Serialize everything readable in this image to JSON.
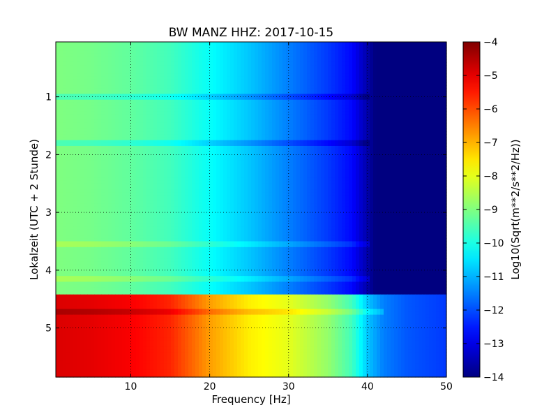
{
  "chart_data": {
    "type": "heatmap",
    "title": "BW MANZ HHZ: 2017-10-15",
    "xlabel": "Frequency [Hz]",
    "ylabel": "Lokalzeit (UTC + 2 Stunde)",
    "colorbar_label": "Log10(Sqrt(m**2/s**2/Hz))",
    "xlim": [
      0.5,
      50
    ],
    "ylim": [
      0.05,
      5.85
    ],
    "y_inverted": true,
    "grid": true,
    "colormap": "jet",
    "clim": [
      -14,
      -4
    ],
    "x_ticks": [
      10,
      20,
      30,
      40,
      50
    ],
    "x_tick_labels": [
      "10",
      "20",
      "30",
      "40",
      "50"
    ],
    "y_ticks": [
      1,
      2,
      3,
      4,
      5
    ],
    "y_tick_labels": [
      "1",
      "2",
      "3",
      "4",
      "5"
    ],
    "colorbar_ticks": [
      -4,
      -5,
      -6,
      -7,
      -8,
      -9,
      -10,
      -11,
      -12,
      -13,
      -14
    ],
    "colorbar_tick_labels": [
      "−4",
      "−5",
      "−6",
      "−7",
      "−8",
      "−9",
      "−10",
      "−11",
      "−12",
      "−13",
      "−14"
    ],
    "segments": [
      {
        "time_range": [
          0.05,
          4.42
        ],
        "profile_freq": [
          0.5,
          5,
          10,
          15,
          20,
          25,
          30,
          35,
          38,
          40,
          41,
          42,
          50
        ],
        "profile_value": [
          -9.0,
          -9.1,
          -9.3,
          -9.6,
          -10.2,
          -10.8,
          -11.5,
          -12.2,
          -12.7,
          -13.6,
          -14.0,
          -14.0,
          -14.0
        ]
      },
      {
        "time_range": [
          4.42,
          5.85
        ],
        "profile_freq": [
          0.5,
          5,
          10,
          15,
          18,
          20,
          25,
          30,
          35,
          38,
          40,
          42,
          45,
          50
        ],
        "profile_value": [
          -4.9,
          -5.0,
          -5.2,
          -5.6,
          -6.3,
          -6.8,
          -7.6,
          -8.0,
          -8.8,
          -9.6,
          -10.8,
          -11.5,
          -11.9,
          -12.2
        ]
      }
    ],
    "line_features": [
      {
        "time": 1.0,
        "delta": -0.5
      },
      {
        "time": 1.8,
        "delta": -0.5
      },
      {
        "time": 3.55,
        "delta": 0.4
      },
      {
        "time": 4.15,
        "delta": 0.4
      },
      {
        "time": 4.72,
        "delta": 0.5
      }
    ]
  }
}
